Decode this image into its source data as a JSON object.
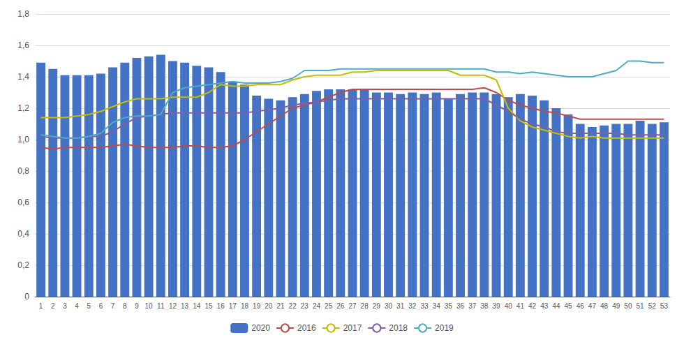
{
  "chart_data": {
    "type": "bar",
    "categories": [
      1,
      2,
      3,
      4,
      5,
      6,
      7,
      8,
      9,
      10,
      11,
      12,
      13,
      14,
      15,
      16,
      17,
      18,
      19,
      20,
      21,
      22,
      23,
      24,
      25,
      26,
      27,
      28,
      29,
      30,
      31,
      32,
      33,
      34,
      35,
      36,
      37,
      38,
      39,
      40,
      41,
      42,
      43,
      44,
      45,
      46,
      47,
      48,
      49,
      50,
      51,
      52,
      53
    ],
    "series": [
      {
        "name": "2020",
        "type": "bar",
        "color": "#4472c4",
        "values": [
          1.49,
          1.45,
          1.41,
          1.41,
          1.41,
          1.42,
          1.46,
          1.49,
          1.52,
          1.53,
          1.54,
          1.5,
          1.49,
          1.47,
          1.46,
          1.43,
          1.37,
          1.35,
          1.28,
          1.26,
          1.25,
          1.27,
          1.29,
          1.31,
          1.32,
          1.32,
          1.32,
          1.32,
          1.3,
          1.3,
          1.29,
          1.3,
          1.29,
          1.3,
          1.26,
          1.29,
          1.3,
          1.3,
          1.29,
          1.27,
          1.29,
          1.28,
          1.25,
          1.2,
          1.16,
          1.1,
          1.08,
          1.09,
          1.1,
          1.1,
          1.12,
          1.1,
          1.11
        ]
      },
      {
        "name": "2016",
        "type": "line",
        "color": "#be4b48",
        "values": [
          0.95,
          0.94,
          0.95,
          0.95,
          0.95,
          0.95,
          0.96,
          0.97,
          0.96,
          0.95,
          0.95,
          0.95,
          0.96,
          0.96,
          0.95,
          0.95,
          0.96,
          1.0,
          1.05,
          1.1,
          1.15,
          1.2,
          1.22,
          1.24,
          1.27,
          1.3,
          1.32,
          1.32,
          1.32,
          1.32,
          1.32,
          1.32,
          1.32,
          1.32,
          1.32,
          1.32,
          1.32,
          1.33,
          1.3,
          1.25,
          1.22,
          1.2,
          1.18,
          1.17,
          1.15,
          1.13,
          1.13,
          1.13,
          1.13,
          1.13,
          1.13,
          1.13,
          1.13
        ]
      },
      {
        "name": "2017",
        "type": "line",
        "color": "#c4bd00",
        "values": [
          1.14,
          1.14,
          1.14,
          1.15,
          1.16,
          1.18,
          1.21,
          1.24,
          1.26,
          1.26,
          1.26,
          1.27,
          1.27,
          1.27,
          1.3,
          1.35,
          1.34,
          1.34,
          1.35,
          1.35,
          1.35,
          1.38,
          1.4,
          1.41,
          1.41,
          1.41,
          1.43,
          1.43,
          1.44,
          1.44,
          1.44,
          1.44,
          1.44,
          1.44,
          1.44,
          1.41,
          1.41,
          1.41,
          1.38,
          1.2,
          1.12,
          1.08,
          1.06,
          1.04,
          1.02,
          1.01,
          1.02,
          1.01,
          1.01,
          1.01,
          1.01,
          1.01,
          1.01
        ]
      },
      {
        "name": "2018",
        "type": "line",
        "color": "#7f5fa6",
        "values": [
          1.02,
          1.01,
          1.01,
          1.01,
          1.02,
          1.02,
          1.05,
          1.1,
          1.14,
          1.15,
          1.16,
          1.17,
          1.17,
          1.17,
          1.17,
          1.17,
          1.17,
          1.17,
          1.18,
          1.19,
          1.2,
          1.22,
          1.23,
          1.24,
          1.25,
          1.26,
          1.26,
          1.26,
          1.26,
          1.26,
          1.26,
          1.26,
          1.26,
          1.26,
          1.26,
          1.26,
          1.26,
          1.26,
          1.22,
          1.18,
          1.13,
          1.1,
          1.08,
          1.05,
          1.04,
          1.04,
          1.04,
          1.04,
          1.04,
          1.03,
          1.03,
          1.03,
          1.03
        ]
      },
      {
        "name": "2019",
        "type": "line",
        "color": "#4bacc6",
        "values": [
          1.03,
          1.02,
          1.01,
          1.01,
          1.02,
          1.04,
          1.11,
          1.14,
          1.15,
          1.15,
          1.16,
          1.3,
          1.33,
          1.34,
          1.35,
          1.36,
          1.37,
          1.36,
          1.36,
          1.36,
          1.37,
          1.39,
          1.44,
          1.44,
          1.44,
          1.45,
          1.45,
          1.45,
          1.45,
          1.45,
          1.45,
          1.45,
          1.45,
          1.45,
          1.45,
          1.45,
          1.45,
          1.45,
          1.43,
          1.43,
          1.42,
          1.43,
          1.42,
          1.41,
          1.4,
          1.4,
          1.4,
          1.42,
          1.44,
          1.5,
          1.5,
          1.49,
          1.49
        ]
      }
    ],
    "ylim": [
      0,
      1.8
    ],
    "yticks": [
      0,
      {
        "value": 0.2,
        "label": "0,2"
      },
      {
        "value": 0.4,
        "label": "0,4"
      },
      {
        "value": 0.6,
        "label": "0,6"
      },
      {
        "value": 0.8,
        "label": "0,8"
      },
      {
        "value": 1.0,
        "label": "1,0"
      },
      {
        "value": 1.2,
        "label": "1,2"
      },
      {
        "value": 1.4,
        "label": "1,4"
      },
      {
        "value": 1.6,
        "label": "1,6"
      },
      {
        "value": 1.8,
        "label": "1,8"
      }
    ],
    "grid": true,
    "legend": "bottom"
  }
}
